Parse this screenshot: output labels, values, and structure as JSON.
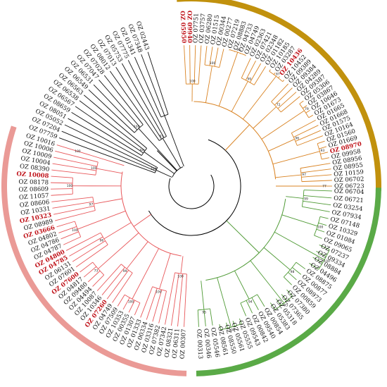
{
  "figure": {
    "root_stroke": "#000000",
    "label_color": "#111111",
    "highlight_color": "#c0141b",
    "clades": [
      {
        "name": "gold",
        "band_color": "#c1910d",
        "branch_color": "#d98323",
        "labels": [
          {
            "text": "OZ 05950",
            "hl": true
          },
          {
            "text": "OZ 09940",
            "hl": true
          },
          {
            "text": "OZ 07751",
            "hl": false
          },
          {
            "text": "OZ 03757",
            "hl": false
          },
          {
            "text": "OZ 06280",
            "hl": false
          },
          {
            "text": "OZ 01515",
            "hl": false
          },
          {
            "text": "OZ 00344",
            "hl": false
          },
          {
            "text": "OZ 00277",
            "hl": false
          },
          {
            "text": "OZ 07219",
            "hl": false
          },
          {
            "text": "OZ 08883",
            "hl": false
          },
          {
            "text": "OZ 04733",
            "hl": false
          },
          {
            "text": "OZ 04749",
            "hl": false
          },
          {
            "text": "OZ 02363",
            "hl": false
          },
          {
            "text": "OZ 07421",
            "hl": false
          },
          {
            "text": "OZ 02348",
            "hl": false
          },
          {
            "text": "OZ 01182",
            "hl": false
          },
          {
            "text": "OZ 10185",
            "hl": false
          },
          {
            "text": "OZ 03287",
            "hl": false
          },
          {
            "text": "OZ 10436",
            "hl": true
          },
          {
            "text": "OZ 10452",
            "hl": false
          },
          {
            "text": "OZ 09389",
            "hl": false
          },
          {
            "text": "OZ 09384",
            "hl": false
          },
          {
            "text": "OZ 04289",
            "hl": false
          },
          {
            "text": "OZ 09387",
            "hl": false
          },
          {
            "text": "OZ 05306",
            "hl": false
          },
          {
            "text": "OZ 03867",
            "hl": false
          },
          {
            "text": "OZ 10646",
            "hl": false
          },
          {
            "text": "OZ 01673",
            "hl": false
          },
          {
            "text": "OZ 01665",
            "hl": false
          },
          {
            "text": "OZ 01668",
            "hl": false
          },
          {
            "text": "OZ 01575",
            "hl": false
          },
          {
            "text": "OZ 10164",
            "hl": false
          },
          {
            "text": "OZ 01560",
            "hl": false
          },
          {
            "text": "OZ 01669",
            "hl": false
          },
          {
            "text": "OZ 08970",
            "hl": true
          },
          {
            "text": "OZ 09958",
            "hl": false
          },
          {
            "text": "OZ 08956",
            "hl": false
          },
          {
            "text": "OZ 08955",
            "hl": false
          },
          {
            "text": "OZ 10159",
            "hl": false
          },
          {
            "text": "OZ 06702",
            "hl": false
          },
          {
            "text": "OZ 06723",
            "hl": false
          }
        ]
      },
      {
        "name": "green",
        "band_color": "#5aaa47",
        "branch_color": "#4f9a35",
        "labels": [
          {
            "text": "OZ 06704",
            "hl": false
          },
          {
            "text": "OZ 06721",
            "hl": false
          },
          {
            "text": "OZ 03254",
            "hl": false
          },
          {
            "text": "OZ 07934",
            "hl": false
          },
          {
            "text": "OZ 07148",
            "hl": false
          },
          {
            "text": "OZ 10329",
            "hl": false
          },
          {
            "text": "OZ 01084",
            "hl": false
          },
          {
            "text": "OZ 09065",
            "hl": false
          },
          {
            "text": "OZ 07237",
            "hl": false
          },
          {
            "text": "OZ 09334",
            "hl": false
          },
          {
            "text": "OZ 08884",
            "hl": false
          },
          {
            "text": "OZ 04496",
            "hl": false
          },
          {
            "text": "OZ 08875",
            "hl": false
          },
          {
            "text": "OZ 00877",
            "hl": false
          },
          {
            "text": "OZ 08973",
            "hl": false
          },
          {
            "text": "OZ 00859",
            "hl": false
          },
          {
            "text": "OZ 07380",
            "hl": false
          },
          {
            "text": "OZ 07365",
            "hl": false
          },
          {
            "text": "OZ 05318",
            "hl": false
          },
          {
            "text": "OZ 05383",
            "hl": false
          },
          {
            "text": "OZ 00854",
            "hl": false
          },
          {
            "text": "OZ 09540",
            "hl": false
          },
          {
            "text": "OZ 00842",
            "hl": false
          },
          {
            "text": "OZ 09543",
            "hl": false
          },
          {
            "text": "OZ 05555",
            "hl": false
          },
          {
            "text": "OZ 05561",
            "hl": false
          },
          {
            "text": "OZ 08550",
            "hl": false
          },
          {
            "text": "OZ 08561",
            "hl": false
          },
          {
            "text": "OZ 05546",
            "hl": false
          },
          {
            "text": "OZ 00346",
            "hl": false
          },
          {
            "text": "OZ 00313",
            "hl": false
          }
        ]
      },
      {
        "name": "pink",
        "band_color": "#ea9a96",
        "branch_color": "#e8575a",
        "labels": [
          {
            "text": "OZ 00307",
            "hl": false
          },
          {
            "text": "OZ 06311",
            "hl": false
          },
          {
            "text": "OZ 08321",
            "hl": false
          },
          {
            "text": "OZ 07342",
            "hl": false
          },
          {
            "text": "OZ 07382",
            "hl": false
          },
          {
            "text": "OZ 03316",
            "hl": false
          },
          {
            "text": "OZ 00334",
            "hl": false
          },
          {
            "text": "OZ 01333",
            "hl": false
          },
          {
            "text": "OZ 01307",
            "hl": false
          },
          {
            "text": "OZ 00355",
            "hl": false
          },
          {
            "text": "OZ 10353",
            "hl": false
          },
          {
            "text": "OZ 07509",
            "hl": false
          },
          {
            "text": "OZ 04749",
            "hl": false
          },
          {
            "text": "OZ 07260",
            "hl": true
          },
          {
            "text": "OZ 10346",
            "hl": false
          },
          {
            "text": "OZ 10087",
            "hl": false
          },
          {
            "text": "OZ 04494",
            "hl": false
          },
          {
            "text": "OZ 09480",
            "hl": false
          },
          {
            "text": "OZ 04817",
            "hl": false
          },
          {
            "text": "OZ 07600",
            "hl": true
          },
          {
            "text": "OZ 07601",
            "hl": false
          },
          {
            "text": "OZ 06131",
            "hl": false
          },
          {
            "text": "OZ 04785",
            "hl": true
          },
          {
            "text": "OZ 04800",
            "hl": true
          },
          {
            "text": "OZ 04787",
            "hl": false
          },
          {
            "text": "OZ 04786",
            "hl": false
          },
          {
            "text": "OZ 04802",
            "hl": false
          },
          {
            "text": "OZ 03666",
            "hl": true
          },
          {
            "text": "OZ 08989",
            "hl": false
          },
          {
            "text": "OZ 10323",
            "hl": true
          },
          {
            "text": "OZ 10331",
            "hl": false
          },
          {
            "text": "OZ 08606",
            "hl": false
          },
          {
            "text": "OZ 11057",
            "hl": false
          },
          {
            "text": "OZ 08609",
            "hl": false
          },
          {
            "text": "OZ 08178",
            "hl": false
          },
          {
            "text": "OZ 10008",
            "hl": true
          },
          {
            "text": "OZ 08390",
            "hl": false
          },
          {
            "text": "OZ 10004",
            "hl": false
          },
          {
            "text": "OZ 10009",
            "hl": false
          },
          {
            "text": "OZ 10006",
            "hl": false
          },
          {
            "text": "OZ 10016",
            "hl": false
          }
        ]
      },
      {
        "name": "black",
        "band_color": "",
        "branch_color": "#111111",
        "labels": [
          {
            "text": "OZ 07759",
            "hl": false
          },
          {
            "text": "OZ 07204",
            "hl": false
          },
          {
            "text": "OZ 05052",
            "hl": false
          },
          {
            "text": "OZ 08051",
            "hl": false
          },
          {
            "text": "OZ 08659",
            "hl": false
          },
          {
            "text": "OZ 06567",
            "hl": false
          },
          {
            "text": "OZ 06538",
            "hl": false
          },
          {
            "text": "OZ 06563",
            "hl": false
          },
          {
            "text": "OZ 06549",
            "hl": false
          },
          {
            "text": "OZ 06531",
            "hl": false
          },
          {
            "text": "OZ 07047",
            "hl": false
          },
          {
            "text": "OZ 07028",
            "hl": false
          },
          {
            "text": "OZ 08012",
            "hl": false
          },
          {
            "text": "OZ 07013",
            "hl": false
          },
          {
            "text": "OZ 05753",
            "hl": false
          },
          {
            "text": "OZ 07775",
            "hl": false
          },
          {
            "text": "OZ 01341",
            "hl": false
          },
          {
            "text": "OZ 07348",
            "hl": false
          },
          {
            "text": "OZ 02443",
            "hl": false
          }
        ]
      }
    ],
    "bootstrap": [
      "100",
      "100",
      "98",
      "99",
      "87",
      "72",
      "79",
      "96",
      "93",
      "97",
      "77",
      "99",
      "100",
      "100",
      "98",
      "93",
      "94",
      "100",
      "95",
      "100",
      "100",
      "100",
      "99",
      "73",
      "96",
      "100",
      "97",
      "100",
      "100",
      "100",
      "100",
      "94",
      "100",
      "93"
    ]
  }
}
